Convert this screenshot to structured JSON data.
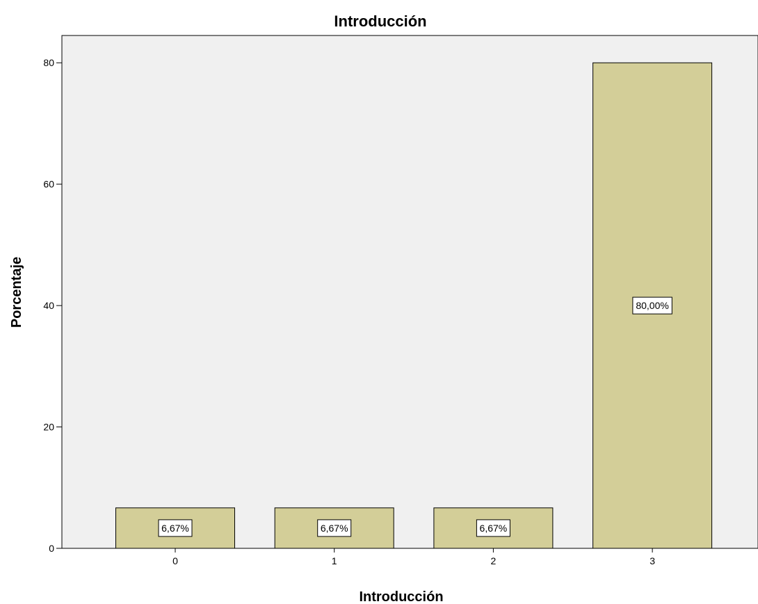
{
  "chart_data": {
    "type": "bar",
    "title": "Introducción",
    "xlabel": "Introducción",
    "ylabel": "Porcentaje",
    "categories": [
      "0",
      "1",
      "2",
      "3"
    ],
    "values": [
      6.67,
      6.67,
      6.67,
      80.0
    ],
    "data_labels": [
      "6,67%",
      "6,67%",
      "6,67%",
      "80,00%"
    ],
    "yticks": [
      0,
      20,
      40,
      60,
      80
    ],
    "ylim": [
      0,
      84.5
    ],
    "grid": false,
    "colors": {
      "bar_fill": "#d3ce98",
      "bar_stroke": "#000000",
      "plot_background": "#f0f0f0",
      "page_background": "#ffffff"
    }
  }
}
